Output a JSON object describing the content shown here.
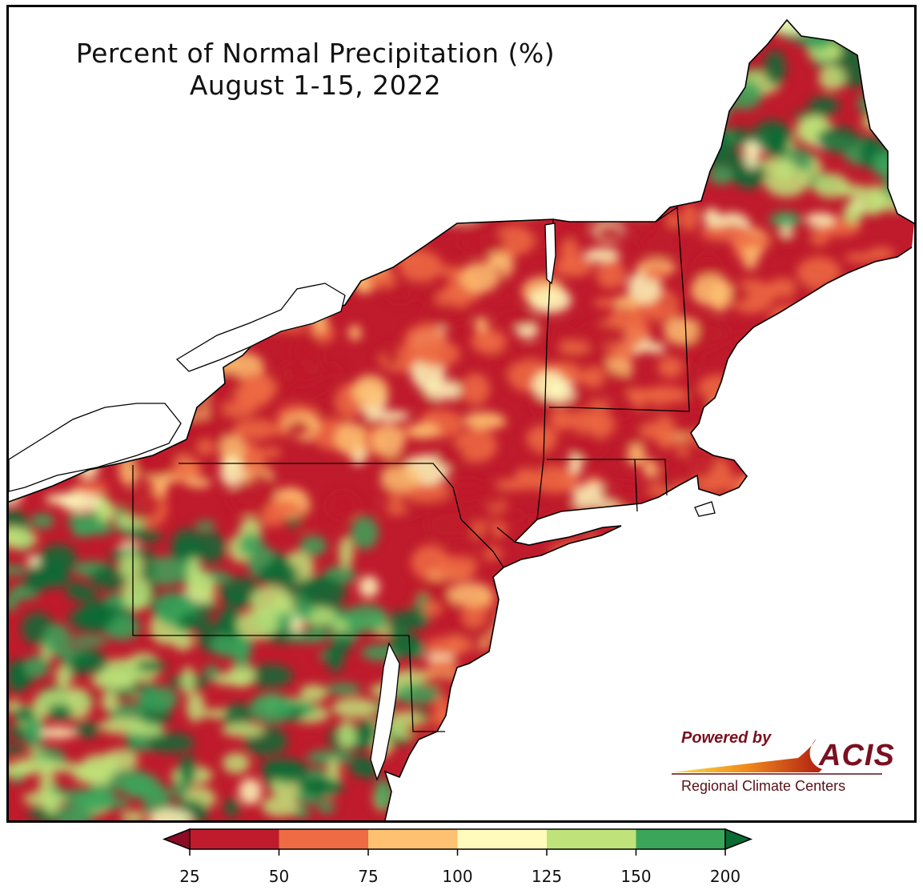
{
  "title": {
    "line1": "Percent of Normal Precipitation (%)",
    "line2": "August 1-15, 2022"
  },
  "logo": {
    "powered_by": "Powered by",
    "name": "ACIS",
    "subtitle": "Regional Climate Centers"
  },
  "legend": {
    "ticks": [
      "25",
      "50",
      "75",
      "100",
      "125",
      "150",
      "200"
    ],
    "colors": [
      "#bf1b2c",
      "#ee6b43",
      "#fdc171",
      "#fefbbd",
      "#bfe37a",
      "#3ba55a",
      "#0a6b35"
    ],
    "below_min_color": "#8c0b26",
    "above_max_color": "#044a23"
  },
  "colors": {
    "water": "#ffffff",
    "border": "#000000"
  }
}
